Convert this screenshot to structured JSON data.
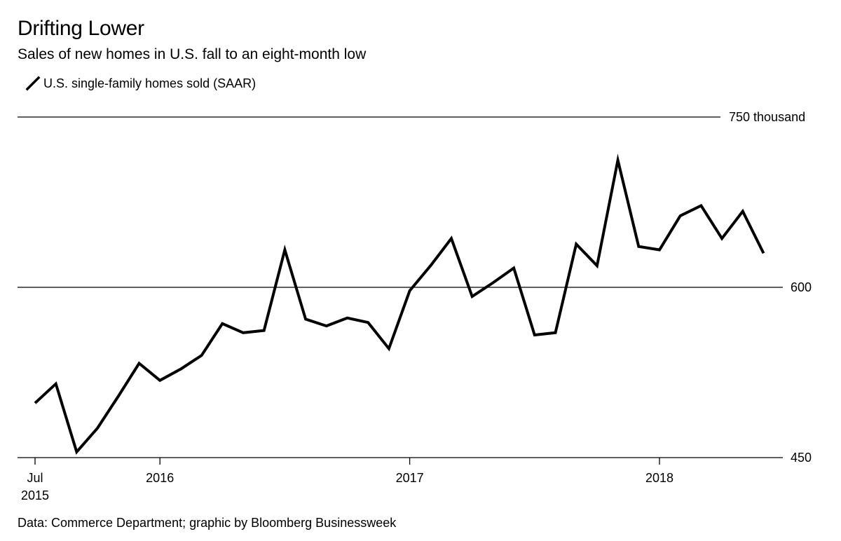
{
  "header": {
    "title": "Drifting Lower",
    "subtitle": "Sales of new homes in U.S. fall to an eight-month low"
  },
  "legend": {
    "label": "U.S. single-family homes sold (SAAR)"
  },
  "footer": {
    "source": "Data: Commerce Department; graphic by Bloomberg Businessweek"
  },
  "colors": {
    "line": "#000000",
    "grid": "#000000",
    "background": "#ffffff"
  },
  "chart_data": {
    "type": "line",
    "title": "Drifting Lower",
    "subtitle": "Sales of new homes in U.S. fall to an eight-month low",
    "ylabel": "",
    "xlabel": "",
    "ylim": [
      450,
      750
    ],
    "y_ticks": [
      {
        "value": 750,
        "label": "750 thousand"
      },
      {
        "value": 600,
        "label": "600"
      },
      {
        "value": 450,
        "label": "450"
      }
    ],
    "x_ticks": [
      {
        "month": "2015-07",
        "label": "Jul",
        "sublabel": "2015"
      },
      {
        "month": "2016-01",
        "label": "2016"
      },
      {
        "month": "2017-01",
        "label": "2017"
      },
      {
        "month": "2018-01",
        "label": "2018"
      }
    ],
    "grid": true,
    "legend_position": "top-left",
    "series": [
      {
        "name": "U.S. single-family homes sold (SAAR)",
        "x": [
          "2015-07",
          "2015-08",
          "2015-09",
          "2015-10",
          "2015-11",
          "2015-12",
          "2016-01",
          "2016-02",
          "2016-03",
          "2016-04",
          "2016-05",
          "2016-06",
          "2016-07",
          "2016-08",
          "2016-09",
          "2016-10",
          "2016-11",
          "2016-12",
          "2017-01",
          "2017-02",
          "2017-03",
          "2017-04",
          "2017-05",
          "2017-06",
          "2017-07",
          "2017-08",
          "2017-09",
          "2017-10",
          "2017-11",
          "2017-12",
          "2018-01",
          "2018-02",
          "2018-03",
          "2018-04",
          "2018-05",
          "2018-06"
        ],
        "values": [
          498,
          515,
          455,
          476,
          504,
          533,
          518,
          528,
          540,
          568,
          560,
          562,
          633,
          572,
          566,
          573,
          569,
          546,
          597,
          619,
          643,
          592,
          604,
          617,
          558,
          560,
          638,
          619,
          712,
          636,
          633,
          663,
          672,
          643,
          667,
          630
        ]
      }
    ]
  }
}
